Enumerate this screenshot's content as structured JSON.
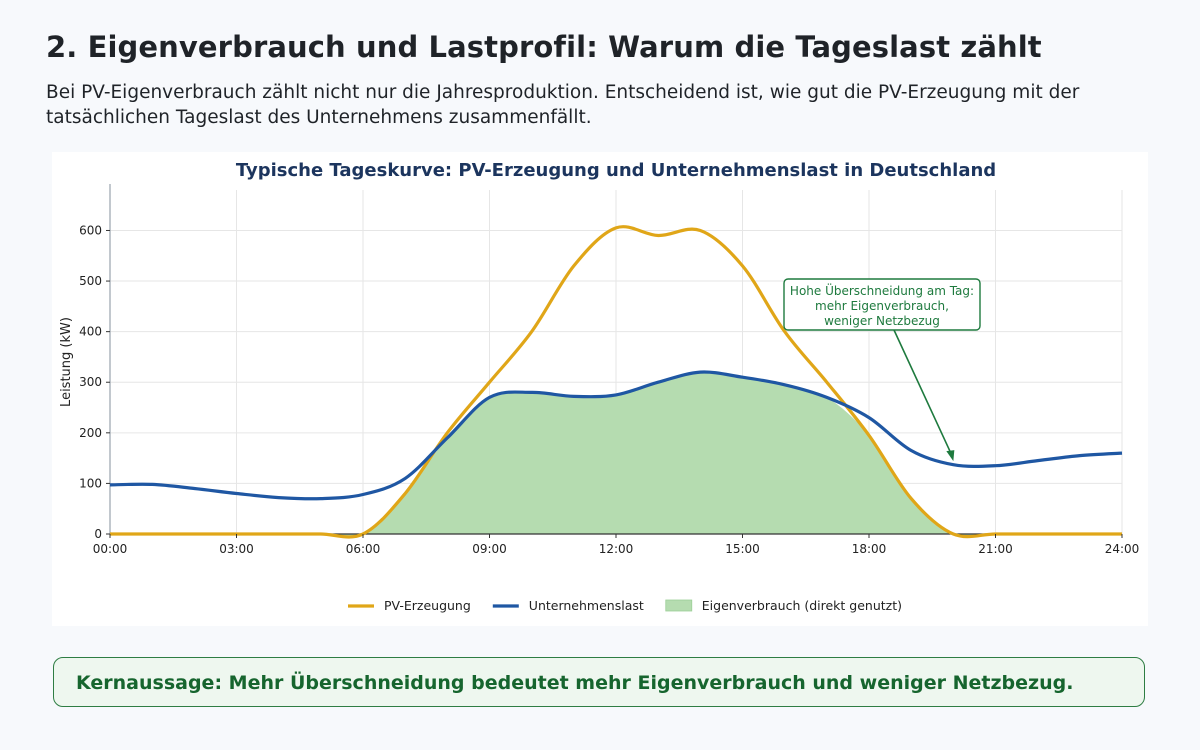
{
  "page": {
    "heading": "2. Eigenverbrauch und Lastprofil: Warum die Tageslast zählt",
    "intro": "Bei PV-Eigenverbrauch zählt nicht nur die Jahresproduktion. Entscheidend ist, wie gut die PV-Erzeugung mit der tatsächlichen Tageslast des Unternehmens zusammenfällt.",
    "takeaway": "Kernaussage: Mehr Überschneidung bedeutet mehr Eigenverbrauch und weniger Netzbezug."
  },
  "chart_data": {
    "type": "area",
    "title": "Typische Tageskurve: PV-Erzeugung und Unternehmenslast in Deutschland",
    "xlabel": "",
    "ylabel": "Leistung (kW)",
    "xlim": [
      0,
      24
    ],
    "ylim": [
      0,
      680
    ],
    "x_ticks": [
      "00:00",
      "03:00",
      "06:00",
      "09:00",
      "12:00",
      "15:00",
      "18:00",
      "21:00",
      "24:00"
    ],
    "y_ticks": [
      0,
      100,
      200,
      300,
      400,
      500,
      600
    ],
    "grid": true,
    "legend_position": "bottom-center",
    "x": [
      0,
      1,
      2,
      3,
      4,
      5,
      6,
      7,
      8,
      9,
      10,
      11,
      12,
      13,
      14,
      15,
      16,
      17,
      18,
      19,
      20,
      21,
      22,
      23,
      24
    ],
    "series": [
      {
        "name": "PV-Erzeugung",
        "color": "#e0a618",
        "kind": "line",
        "values": [
          0,
          0,
          0,
          0,
          0,
          0,
          0,
          80,
          200,
          300,
          400,
          530,
          605,
          590,
          600,
          530,
          400,
          300,
          195,
          70,
          0,
          0,
          0,
          0,
          0
        ]
      },
      {
        "name": "Unternehmenslast",
        "color": "#1f57a3",
        "kind": "line",
        "values": [
          97,
          98,
          90,
          80,
          72,
          70,
          78,
          110,
          190,
          270,
          280,
          272,
          275,
          300,
          320,
          310,
          295,
          270,
          230,
          165,
          137,
          135,
          145,
          155,
          160
        ]
      },
      {
        "name": "Eigenverbrauch (direkt genutzt)",
        "color": "#b5dcb0",
        "kind": "area",
        "values": [
          0,
          0,
          0,
          0,
          0,
          0,
          0,
          80,
          190,
          270,
          280,
          272,
          275,
          300,
          320,
          310,
          295,
          270,
          195,
          70,
          0,
          0,
          0,
          0,
          0
        ]
      }
    ],
    "annotation": {
      "lines": [
        "Hohe Überschneidung am Tag:",
        "mehr Eigenverbrauch,",
        "weniger Netzbezug"
      ],
      "point": [
        20,
        142
      ],
      "color": "#1e7a3e"
    }
  }
}
